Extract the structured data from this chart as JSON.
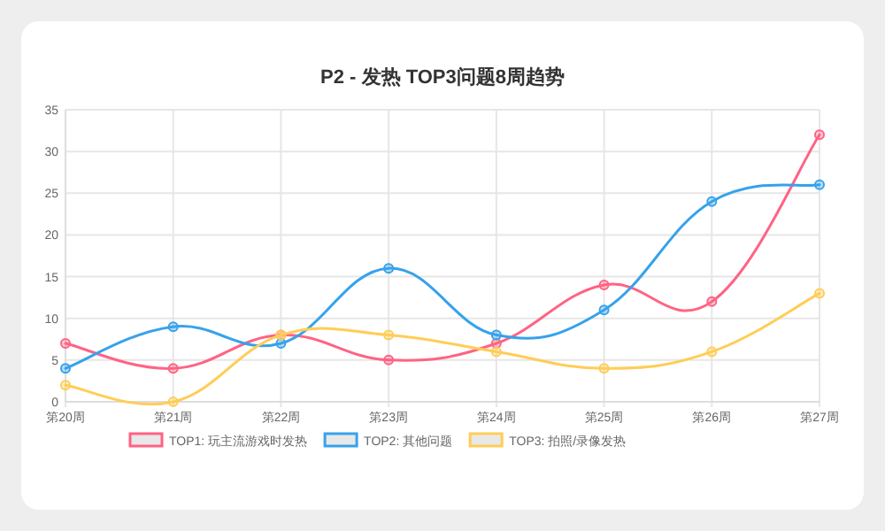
{
  "chart_data": {
    "type": "line",
    "title": "P2 - 发热 TOP3问题8周趋势",
    "categories": [
      "第20周",
      "第21周",
      "第22周",
      "第23周",
      "第24周",
      "第25周",
      "第26周",
      "第27周"
    ],
    "series": [
      {
        "name": "TOP1: 玩主流游戏时发热",
        "color": "#ff6384",
        "values": [
          7,
          4,
          8,
          5,
          7,
          14,
          12,
          32
        ]
      },
      {
        "name": "TOP2: 其他问题",
        "color": "#36a2eb",
        "values": [
          4,
          9,
          7,
          16,
          8,
          11,
          24,
          26
        ]
      },
      {
        "name": "TOP3: 拍照/录像发热",
        "color": "#ffcd56",
        "values": [
          2,
          0,
          8,
          8,
          6,
          4,
          6,
          13
        ]
      }
    ],
    "ylim": [
      0,
      35
    ],
    "yticks": [
      0,
      5,
      10,
      15,
      20,
      25,
      30,
      35
    ],
    "grid": true,
    "legend": "bottom",
    "marker": "circle",
    "line_style": "solid"
  }
}
